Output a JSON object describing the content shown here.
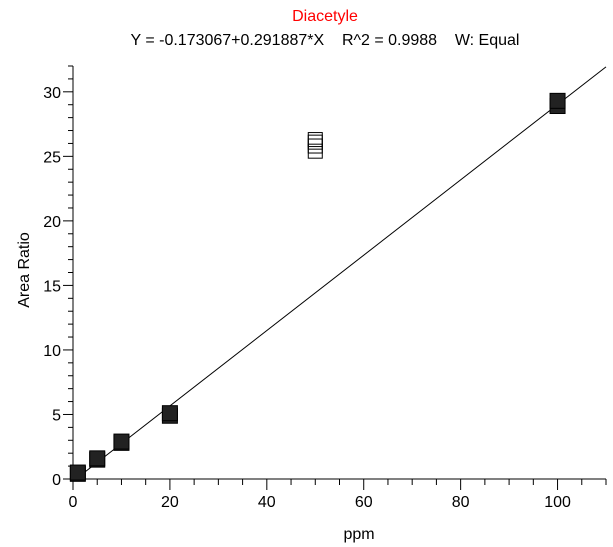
{
  "chart_data": {
    "type": "scatter",
    "title": "Diacetyle",
    "subtitle": "Y = -0.173067+0.291887*X    R^2 = 0.9988    W: Equal",
    "xlabel": "ppm",
    "ylabel": "Area Ratio",
    "xlim": [
      0,
      110
    ],
    "ylim": [
      0,
      32
    ],
    "x_ticks": [
      0,
      20,
      40,
      60,
      80,
      100
    ],
    "y_ticks": [
      0,
      5,
      10,
      15,
      20,
      25,
      30
    ],
    "grid": false,
    "fit": {
      "intercept": -0.173067,
      "slope": 0.291887
    },
    "series": [
      {
        "marker": "filled-square",
        "points": [
          {
            "x": 1,
            "y": 0.4
          },
          {
            "x": 1,
            "y": 0.5
          },
          {
            "x": 5,
            "y": 1.5
          },
          {
            "x": 5,
            "y": 1.6
          },
          {
            "x": 10,
            "y": 2.8
          },
          {
            "x": 10,
            "y": 2.9
          },
          {
            "x": 20,
            "y": 4.9
          },
          {
            "x": 20,
            "y": 5.1
          },
          {
            "x": 100,
            "y": 28.9
          },
          {
            "x": 100,
            "y": 29.3
          }
        ]
      },
      {
        "marker": "open-square",
        "points": [
          {
            "x": 50,
            "y": 25.4
          },
          {
            "x": 50,
            "y": 25.8
          },
          {
            "x": 50,
            "y": 26.1
          },
          {
            "x": 50,
            "y": 26.3
          }
        ]
      }
    ],
    "colors": {
      "title": "#ff0000",
      "axis": "#000000",
      "marker": "#000000"
    }
  }
}
